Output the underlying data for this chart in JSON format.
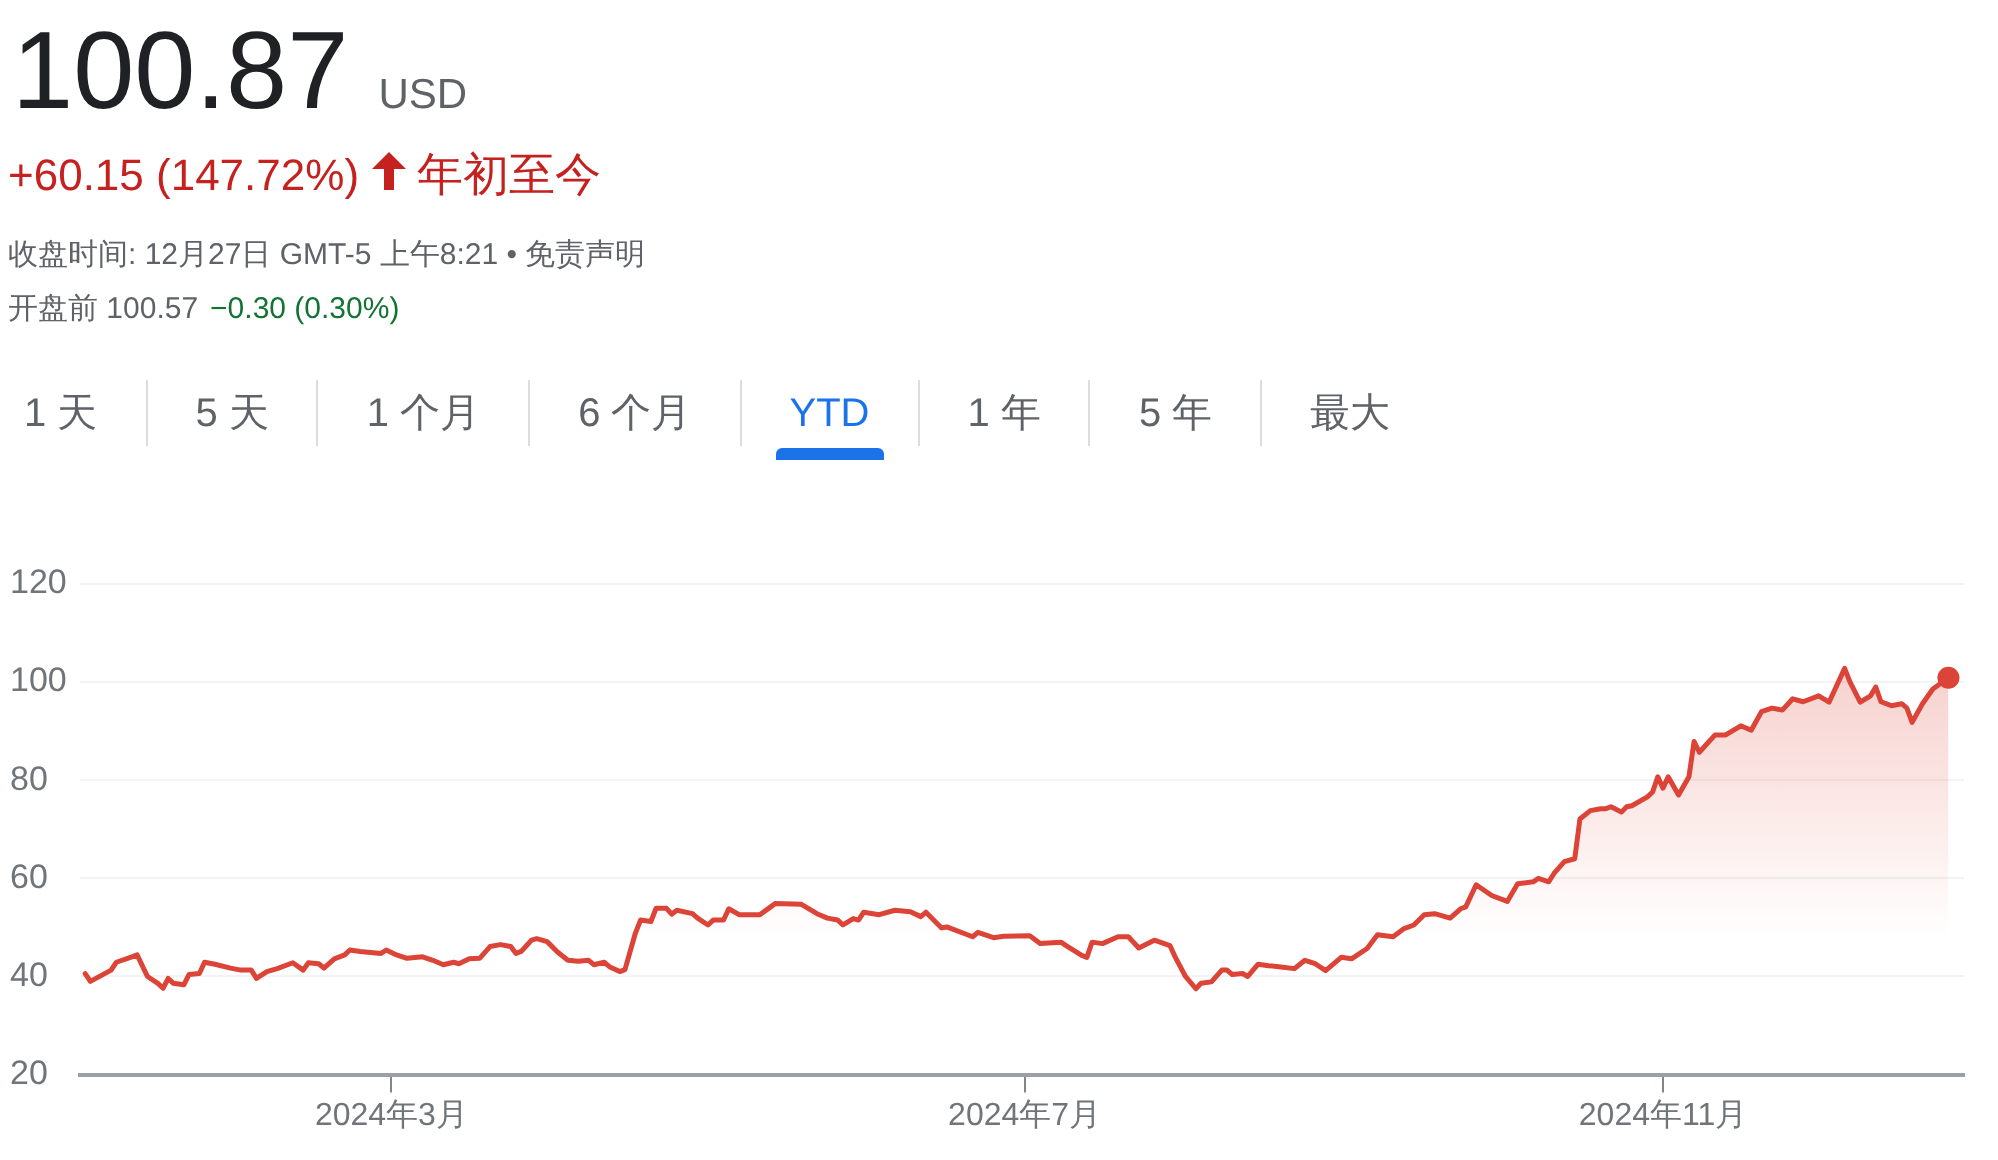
{
  "chart_data": {
    "type": "area",
    "title": "100.87",
    "subtitle": "USD",
    "annotations": [
      "+60.15 (147.72%)",
      "年初至今",
      "收盘时间: 12月27日 GMT-5 上午8:21 • 免责声明",
      "开盘前 100.57",
      "−0.30 (0.30%)",
      "1 天",
      "5 天",
      "1 个月",
      "6 个月",
      "YTD",
      "1 年",
      "5 年",
      "最大"
    ],
    "x": [
      "2024-01-02",
      "2024-01-03",
      "2024-01-07",
      "2024-01-08",
      "2024-01-11",
      "2024-01-12",
      "2024-01-14",
      "2024-01-16",
      "2024-01-17",
      "2024-01-18",
      "2024-01-19",
      "2024-01-21",
      "2024-01-22",
      "2024-01-24",
      "2024-01-25",
      "2024-01-27",
      "2024-01-30",
      "2024-02-01",
      "2024-02-03",
      "2024-02-04",
      "2024-02-06",
      "2024-02-08",
      "2024-02-11",
      "2024-02-13",
      "2024-02-14",
      "2024-02-16",
      "2024-02-17",
      "2024-02-19",
      "2024-02-21",
      "2024-02-22",
      "2024-02-24",
      "2024-02-28",
      "2024-02-29",
      "2024-03-02",
      "2024-03-04",
      "2024-03-07",
      "2024-03-09",
      "2024-03-11",
      "2024-03-13",
      "2024-03-14",
      "2024-03-16",
      "2024-03-18",
      "2024-03-20",
      "2024-03-22",
      "2024-03-24",
      "2024-03-25",
      "2024-03-26",
      "2024-03-28",
      "2024-03-29",
      "2024-03-31",
      "2024-04-02",
      "2024-04-04",
      "2024-04-06",
      "2024-04-08",
      "2024-04-09",
      "2024-04-11",
      "2024-04-12",
      "2024-04-14",
      "2024-04-15",
      "2024-04-17",
      "2024-04-18",
      "2024-04-20",
      "2024-04-21",
      "2024-04-23",
      "2024-04-24",
      "2024-04-25",
      "2024-04-28",
      "2024-04-29",
      "2024-05-01",
      "2024-05-02",
      "2024-05-04",
      "2024-05-05",
      "2024-05-07",
      "2024-05-11",
      "2024-05-14",
      "2024-05-19",
      "2024-05-22",
      "2024-05-24",
      "2024-05-26",
      "2024-05-27",
      "2024-05-29",
      "2024-05-30",
      "2024-05-31",
      "2024-06-03",
      "2024-06-06",
      "2024-06-09",
      "2024-06-11",
      "2024-06-12",
      "2024-06-15",
      "2024-06-16",
      "2024-06-21",
      "2024-06-22",
      "2024-06-25",
      "2024-06-27",
      "2024-07-02",
      "2024-07-04",
      "2024-07-08",
      "2024-07-09",
      "2024-07-12",
      "2024-07-13",
      "2024-07-14",
      "2024-07-16",
      "2024-07-19",
      "2024-07-21",
      "2024-07-23",
      "2024-07-26",
      "2024-07-29",
      "2024-07-30",
      "2024-08-01",
      "2024-08-03",
      "2024-08-04",
      "2024-08-06",
      "2024-08-08",
      "2024-08-09",
      "2024-08-10",
      "2024-08-12",
      "2024-08-13",
      "2024-08-15",
      "2024-08-17",
      "2024-08-19",
      "2024-08-22",
      "2024-08-24",
      "2024-08-26",
      "2024-08-28",
      "2024-08-31",
      "2024-09-02",
      "2024-09-05",
      "2024-09-07",
      "2024-09-10",
      "2024-09-12",
      "2024-09-14",
      "2024-09-16",
      "2024-09-18",
      "2024-09-21",
      "2024-09-23",
      "2024-09-24",
      "2024-09-26",
      "2024-09-29",
      "2024-10-02",
      "2024-10-04",
      "2024-10-07",
      "2024-10-08",
      "2024-10-10",
      "2024-10-11",
      "2024-10-13",
      "2024-10-15",
      "2024-10-16",
      "2024-10-18",
      "2024-10-20",
      "2024-10-21",
      "2024-10-22",
      "2024-10-24",
      "2024-10-25",
      "2024-10-26",
      "2024-10-29",
      "2024-10-30",
      "2024-10-31",
      "2024-11-01",
      "2024-11-02",
      "2024-11-04",
      "2024-11-06",
      "2024-11-07",
      "2024-11-08",
      "2024-11-11",
      "2024-11-13",
      "2024-11-16",
      "2024-11-18",
      "2024-11-20",
      "2024-11-22",
      "2024-11-24",
      "2024-11-26",
      "2024-11-28",
      "2024-12-01",
      "2024-12-03",
      "2024-12-06",
      "2024-12-07",
      "2024-12-09",
      "2024-12-11",
      "2024-12-12",
      "2024-12-13",
      "2024-12-15",
      "2024-12-17",
      "2024-12-18",
      "2024-12-19",
      "2024-12-21",
      "2024-12-23",
      "2024-12-26"
    ],
    "series": [
      {
        "color": "#db4437",
        "values": [
          40.6,
          39.0,
          41.3,
          42.9,
          44.0,
          44.4,
          40.0,
          38.6,
          37.6,
          39.6,
          38.6,
          38.3,
          40.4,
          40.6,
          42.9,
          42.5,
          41.7,
          41.3,
          41.3,
          39.6,
          41.0,
          41.6,
          42.8,
          41.3,
          42.8,
          42.6,
          41.7,
          43.6,
          44.4,
          45.4,
          45.1,
          44.7,
          45.4,
          44.4,
          43.7,
          44.0,
          43.3,
          42.4,
          42.9,
          42.6,
          43.6,
          43.7,
          46.1,
          46.5,
          46.1,
          44.7,
          45.1,
          47.4,
          47.7,
          47.1,
          45.0,
          43.3,
          43.1,
          43.3,
          42.4,
          42.9,
          42.0,
          41.0,
          41.4,
          48.8,
          51.5,
          51.2,
          53.9,
          53.9,
          52.7,
          53.5,
          52.8,
          51.9,
          50.5,
          51.5,
          51.5,
          53.8,
          52.6,
          52.6,
          54.9,
          54.7,
          52.8,
          51.9,
          51.5,
          50.5,
          51.8,
          51.5,
          53.1,
          52.6,
          53.5,
          53.2,
          52.2,
          53.1,
          49.9,
          50.1,
          48.1,
          49.0,
          47.9,
          48.2,
          48.3,
          46.7,
          47.0,
          46.3,
          44.3,
          43.9,
          47.0,
          46.7,
          48.1,
          48.1,
          45.8,
          47.4,
          46.3,
          44.0,
          40.0,
          37.5,
          38.6,
          38.9,
          41.3,
          41.3,
          40.4,
          40.6,
          40.0,
          42.5,
          42.2,
          42.0,
          41.6,
          43.3,
          42.6,
          41.2,
          43.9,
          43.6,
          45.7,
          48.5,
          48.1,
          49.7,
          50.5,
          52.6,
          52.8,
          51.9,
          53.8,
          54.2,
          58.7,
          56.5,
          55.3,
          58.9,
          59.3,
          60.0,
          59.3,
          61.0,
          63.4,
          64.0,
          72.1,
          73.8,
          74.2,
          74.2,
          74.6,
          73.5,
          74.6,
          74.8,
          76.6,
          77.6,
          80.7,
          78.4,
          80.7,
          77.0,
          80.7,
          87.9,
          85.7,
          89.2,
          89.2,
          91.1,
          90.2,
          94.0,
          94.7,
          94.3,
          96.6,
          96.0,
          97.2,
          95.9,
          102.8,
          100.1,
          95.9,
          97.2,
          99.0,
          96.0,
          95.2,
          95.6,
          94.7,
          91.8,
          95.6,
          98.6,
          100.9
        ]
      },
      {
        "type": "scatter",
        "color": "#db4437",
        "marker": "circle",
        "x": [
          "2024-12-26"
        ],
        "values": [
          100.9
        ]
      }
    ],
    "xlim": [
      "2024-01-01",
      "2024-12-29"
    ],
    "xticks": [
      {
        "value": "2024-03-01",
        "label": "2024年3月"
      },
      {
        "value": "2024-07-01",
        "label": "2024年7月"
      },
      {
        "value": "2024-11-01",
        "label": "2024年11月"
      }
    ],
    "ylim": [
      20,
      120
    ],
    "yticks": [
      20,
      40,
      60,
      80,
      100,
      120
    ],
    "grid": "y"
  }
}
